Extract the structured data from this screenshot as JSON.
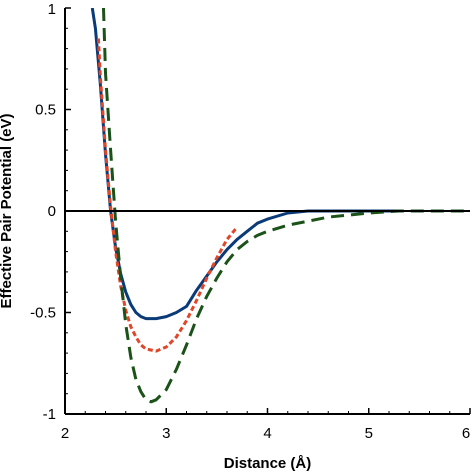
{
  "chart_data": {
    "type": "line",
    "xlabel": "Distance (Å)",
    "ylabel": "Effective Pair Potential (eV)",
    "xlim": [
      2,
      6
    ],
    "ylim": [
      -1,
      1
    ],
    "x_ticks": [
      "2",
      "3",
      "4",
      "5",
      "6"
    ],
    "y_ticks": [
      "1",
      "0.5",
      "0",
      "-0.5",
      "-1"
    ],
    "zero_line": true,
    "grid": false,
    "legend": "none",
    "series": [
      {
        "style": "solid",
        "color": "#0a3a78",
        "points": [
          [
            2.27,
            1.0
          ],
          [
            2.3,
            0.9
          ],
          [
            2.35,
            0.62
          ],
          [
            2.4,
            0.28
          ],
          [
            2.45,
            0.0
          ],
          [
            2.5,
            -0.18
          ],
          [
            2.55,
            -0.31
          ],
          [
            2.6,
            -0.4
          ],
          [
            2.65,
            -0.46
          ],
          [
            2.7,
            -0.5
          ],
          [
            2.75,
            -0.52
          ],
          [
            2.8,
            -0.53
          ],
          [
            2.9,
            -0.53
          ],
          [
            3.0,
            -0.52
          ],
          [
            3.1,
            -0.5
          ],
          [
            3.2,
            -0.47
          ],
          [
            3.3,
            -0.39
          ],
          [
            3.4,
            -0.32
          ],
          [
            3.5,
            -0.25
          ],
          [
            3.6,
            -0.19
          ],
          [
            3.7,
            -0.14
          ],
          [
            3.8,
            -0.1
          ],
          [
            3.9,
            -0.06
          ],
          [
            4.0,
            -0.04
          ],
          [
            4.2,
            -0.01
          ],
          [
            4.4,
            0.0
          ],
          [
            5.3,
            0.0
          ]
        ]
      },
      {
        "style": "dotted",
        "color": "#e0462a",
        "points": [
          [
            2.33,
            0.85
          ],
          [
            2.35,
            0.66
          ],
          [
            2.4,
            0.3
          ],
          [
            2.45,
            0.02
          ],
          [
            2.5,
            -0.2
          ],
          [
            2.55,
            -0.37
          ],
          [
            2.6,
            -0.49
          ],
          [
            2.65,
            -0.57
          ],
          [
            2.7,
            -0.62
          ],
          [
            2.75,
            -0.66
          ],
          [
            2.8,
            -0.68
          ],
          [
            2.9,
            -0.69
          ],
          [
            3.0,
            -0.67
          ],
          [
            3.1,
            -0.62
          ],
          [
            3.2,
            -0.54
          ],
          [
            3.3,
            -0.44
          ],
          [
            3.4,
            -0.33
          ],
          [
            3.5,
            -0.23
          ],
          [
            3.6,
            -0.14
          ],
          [
            3.7,
            -0.08
          ]
        ]
      },
      {
        "style": "dashed",
        "color": "#1a5218",
        "points": [
          [
            2.38,
            1.0
          ],
          [
            2.4,
            0.68
          ],
          [
            2.45,
            0.3
          ],
          [
            2.5,
            -0.05
          ],
          [
            2.55,
            -0.33
          ],
          [
            2.6,
            -0.56
          ],
          [
            2.65,
            -0.72
          ],
          [
            2.7,
            -0.83
          ],
          [
            2.75,
            -0.89
          ],
          [
            2.8,
            -0.93
          ],
          [
            2.85,
            -0.94
          ],
          [
            2.9,
            -0.93
          ],
          [
            3.0,
            -0.88
          ],
          [
            3.1,
            -0.78
          ],
          [
            3.2,
            -0.66
          ],
          [
            3.3,
            -0.53
          ],
          [
            3.4,
            -0.42
          ],
          [
            3.5,
            -0.33
          ],
          [
            3.6,
            -0.25
          ],
          [
            3.7,
            -0.19
          ],
          [
            3.8,
            -0.15
          ],
          [
            3.9,
            -0.12
          ],
          [
            4.0,
            -0.1
          ],
          [
            4.2,
            -0.07
          ],
          [
            4.4,
            -0.05
          ],
          [
            4.6,
            -0.03
          ],
          [
            4.8,
            -0.02
          ],
          [
            5.0,
            -0.01
          ],
          [
            5.3,
            0.0
          ],
          [
            6.0,
            0.0
          ]
        ]
      }
    ]
  }
}
